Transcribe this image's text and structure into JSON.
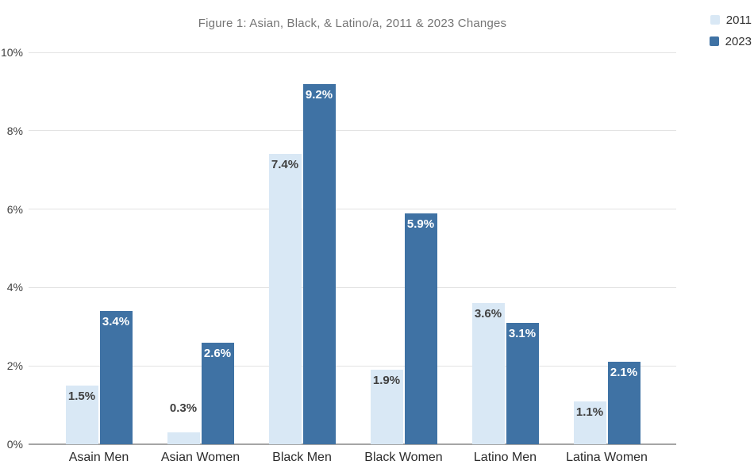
{
  "chart_data": {
    "type": "bar",
    "title": "Figure 1: Asian, Black, & Latino/a, 2011 & 2023 Changes",
    "categories": [
      "Asain Men",
      "Asian Women",
      "Black Men",
      "Black Women",
      "Latino Men",
      "Latina Women"
    ],
    "series": [
      {
        "name": "2011",
        "color": "#d9e8f5",
        "label_color": "#404040",
        "values": [
          1.5,
          0.3,
          7.4,
          1.9,
          3.6,
          1.1
        ]
      },
      {
        "name": "2023",
        "color": "#3f72a4",
        "label_color": "#ffffff",
        "values": [
          3.4,
          2.6,
          9.2,
          5.9,
          3.1,
          2.1
        ]
      }
    ],
    "value_label_suffix": "%",
    "xlabel": "",
    "ylabel": "",
    "ylim": [
      0,
      10
    ],
    "yticks": [
      "0%",
      "2%",
      "4%",
      "6%",
      "8%",
      "10%"
    ],
    "grid": true,
    "legend_position": "top-right",
    "colors": {
      "gridline": "#e3e3e3",
      "axis_line": "#a5a5a5",
      "title_text": "#757575",
      "tick_text": "#404040",
      "category_text": "#2b2b2b",
      "legend_text": "#333333",
      "background": "#ffffff"
    }
  }
}
